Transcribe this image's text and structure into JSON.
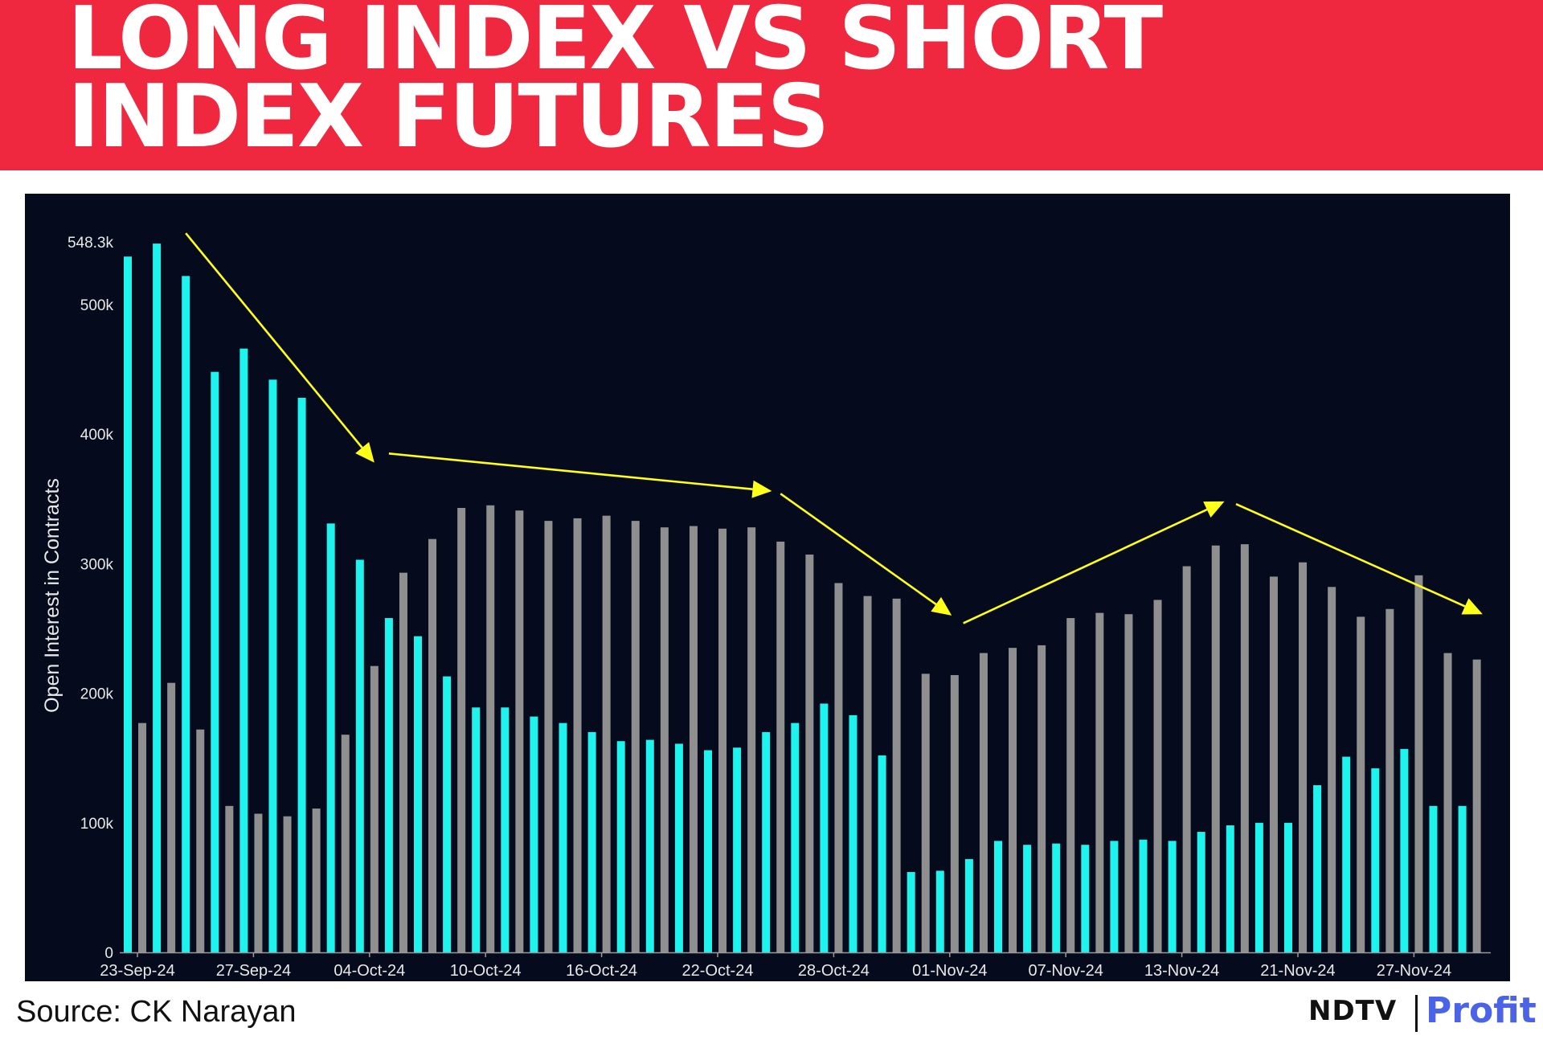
{
  "header": {
    "title": "LONG INDEX VS SHORT\nINDEX FUTURES"
  },
  "source": {
    "text": "Source:  CK Narayan"
  },
  "logo": {
    "ndtv": "NDTV",
    "profit": "Profit",
    "ndtv_color": "#111111",
    "profit_color": "#4b63e6"
  },
  "colors": {
    "banner": "#ef2840",
    "plot_background": "#050b1c",
    "long_series": "#1ff3ee",
    "short_series": "#8f8f8f",
    "trend_arrows": "#ffff1a",
    "axis_text": "#e8e8e8"
  },
  "chart_data": {
    "type": "bar",
    "title": "",
    "xlabel": "",
    "ylabel": "Open Interest in Contracts",
    "ylim": [
      0,
      548300
    ],
    "y_ticks": [
      {
        "value": 0,
        "label": "0"
      },
      {
        "value": 100000,
        "label": "100k"
      },
      {
        "value": 200000,
        "label": "200k"
      },
      {
        "value": 300000,
        "label": "300k"
      },
      {
        "value": 400000,
        "label": "400k"
      },
      {
        "value": 500000,
        "label": "500k"
      },
      {
        "value": 548300,
        "label": "548.3k"
      }
    ],
    "x_tick_labels": [
      {
        "index": 0,
        "label": "23-Sep-24"
      },
      {
        "index": 4,
        "label": "27-Sep-24"
      },
      {
        "index": 8,
        "label": "04-Oct-24"
      },
      {
        "index": 12,
        "label": "10-Oct-24"
      },
      {
        "index": 16,
        "label": "16-Oct-24"
      },
      {
        "index": 20,
        "label": "22-Oct-24"
      },
      {
        "index": 24,
        "label": "28-Oct-24"
      },
      {
        "index": 28,
        "label": "01-Nov-24"
      },
      {
        "index": 32,
        "label": "07-Nov-24"
      },
      {
        "index": 36,
        "label": "13-Nov-24"
      },
      {
        "index": 40,
        "label": "21-Nov-24"
      },
      {
        "index": 44,
        "label": "27-Nov-24"
      }
    ],
    "num_categories": 47,
    "grid": false,
    "legend": "none",
    "series": [
      {
        "values": [
          537000,
          547000,
          522000,
          448000,
          466000,
          442000,
          428000,
          331000,
          303000,
          258000,
          244000,
          213000,
          189000,
          189000,
          182000,
          177000,
          170000,
          163000,
          164000,
          161000,
          156000,
          158000,
          170000,
          177000,
          192000,
          183000,
          152000,
          62000,
          63000,
          72000,
          86000,
          83000,
          84000,
          83000,
          86000,
          87000,
          86000,
          93000,
          98000,
          100000,
          100000,
          129000,
          151000,
          142000,
          157000,
          113000,
          113000
        ]
      },
      {
        "values": [
          177000,
          208000,
          172000,
          113000,
          107000,
          105000,
          111000,
          168000,
          221000,
          293000,
          319000,
          343000,
          345000,
          341000,
          333000,
          335000,
          337000,
          333000,
          328000,
          329000,
          327000,
          328000,
          317000,
          307000,
          285000,
          275000,
          273000,
          215000,
          214000,
          231000,
          235000,
          237000,
          258000,
          262000,
          261000,
          272000,
          298000,
          314000,
          315000,
          290000,
          301000,
          282000,
          259000,
          265000,
          291000,
          231000,
          226000
        ]
      }
    ],
    "trend_arrows": [
      {
        "from": [
          2,
          555000
        ],
        "to": [
          8.5,
          378000
        ]
      },
      {
        "from": [
          9,
          385000
        ],
        "to": [
          22.2,
          356000
        ]
      },
      {
        "from": [
          22.5,
          354000
        ],
        "to": [
          28.4,
          260000
        ]
      },
      {
        "from": [
          28.8,
          254000
        ],
        "to": [
          37.8,
          348000
        ]
      },
      {
        "from": [
          38.2,
          346000
        ],
        "to": [
          46.7,
          261000
        ]
      }
    ]
  }
}
